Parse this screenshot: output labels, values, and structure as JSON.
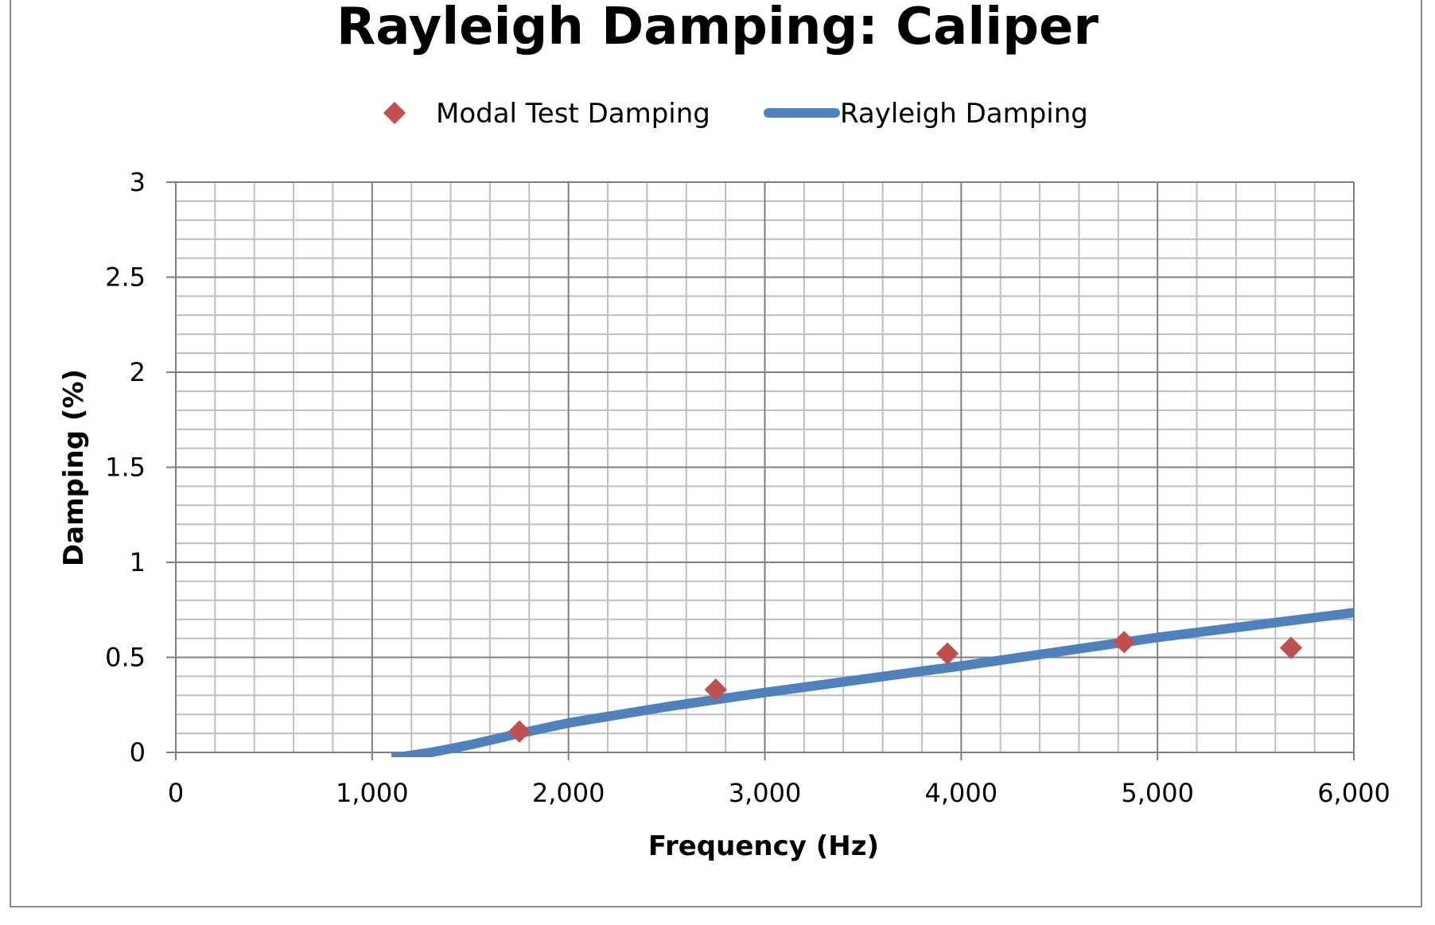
{
  "chart_data": {
    "type": "scatter",
    "title": "Rayleigh Damping: Caliper",
    "xlabel": "Frequency (Hz)",
    "ylabel": "Damping (%)",
    "xlim": [
      0,
      6000
    ],
    "ylim": [
      0,
      3
    ],
    "x_ticks": [
      0,
      1000,
      2000,
      3000,
      4000,
      5000,
      6000
    ],
    "x_tick_labels": [
      "0",
      "1,000",
      "2,000",
      "3,000",
      "4,000",
      "5,000",
      "6,000"
    ],
    "y_ticks": [
      0,
      0.5,
      1,
      1.5,
      2,
      2.5,
      3
    ],
    "y_tick_labels": [
      "0",
      "0.5",
      "1",
      "1.5",
      "2",
      "2.5",
      "3"
    ],
    "grid": true,
    "legend_position": "top",
    "series": [
      {
        "name": "Modal Test Damping",
        "kind": "scatter",
        "marker": "diamond",
        "color": "#C0504D",
        "x": [
          1750,
          2750,
          3930,
          4830,
          5680
        ],
        "y": [
          0.11,
          0.33,
          0.52,
          0.58,
          0.55
        ]
      },
      {
        "name": "Rayleigh Damping",
        "kind": "line",
        "color": "#4F81BD",
        "x": [
          1100,
          1200,
          1300,
          1400,
          1500,
          1750,
          2000,
          2500,
          3000,
          3500,
          4000,
          4500,
          5000,
          5500,
          6000
        ],
        "y": [
          -0.03,
          -0.015,
          0.0,
          0.02,
          0.04,
          0.1,
          0.155,
          0.24,
          0.315,
          0.385,
          0.455,
          0.53,
          0.605,
          0.67,
          0.735
        ]
      }
    ]
  }
}
